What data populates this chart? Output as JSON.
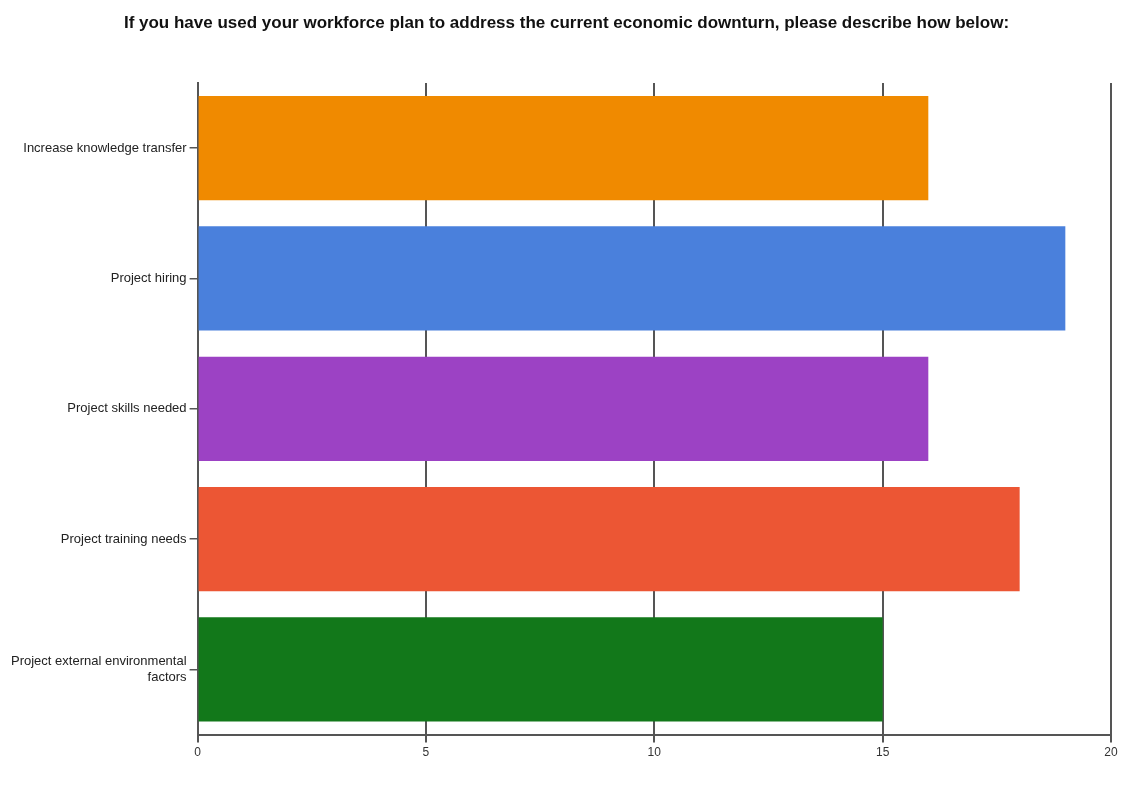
{
  "chart_data": {
    "type": "bar",
    "orientation": "horizontal",
    "title": "If you have used your workforce plan to address the current economic downturn, please describe how below:",
    "categories": [
      "Increase knowledge transfer",
      "Project hiring",
      "Project skills needed",
      "Project training needs",
      "Project external environmental factors"
    ],
    "values": [
      16,
      19,
      16,
      18,
      15
    ],
    "colors": [
      "#f08a00",
      "#4a80dc",
      "#9c42c4",
      "#ec5634",
      "#12781a"
    ],
    "xlim": [
      0,
      20
    ],
    "xticks": [
      0,
      5,
      10,
      15,
      20
    ],
    "grid": "x",
    "legend": false
  }
}
